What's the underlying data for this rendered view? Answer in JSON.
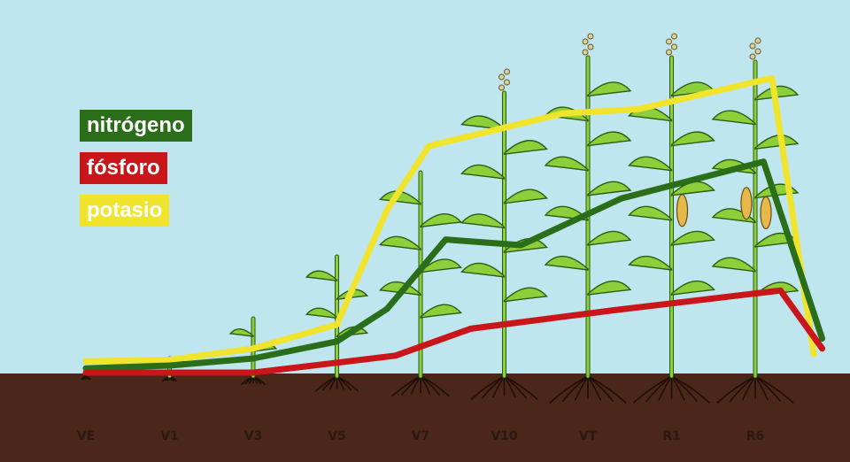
{
  "colors": {
    "sky": "#bfe6ee",
    "soil": "#4a2718",
    "plant": "#8ccf3a",
    "plant_dark": "#2f5a12",
    "nitrogen": "#2a6e1a",
    "phosphorus": "#c8161a",
    "potassium": "#f1e42d"
  },
  "chart_data": {
    "type": "line",
    "title": "",
    "xlabel": "",
    "ylabel": "",
    "grid": false,
    "legend": "top-left",
    "categories": [
      "VE",
      "V1",
      "V3",
      "V5",
      "V7",
      "V10",
      "VT",
      "R1",
      "R6"
    ],
    "series": [
      {
        "name": "nitrógeno",
        "color": "#2a6e1a",
        "points": [
          [
            0,
            3
          ],
          [
            1,
            5
          ],
          [
            2,
            10
          ],
          [
            3,
            22
          ],
          [
            3.6,
            45
          ],
          [
            4.3,
            94
          ],
          [
            5.2,
            90
          ],
          [
            6.4,
            123
          ],
          [
            8.1,
            149
          ],
          [
            8.8,
            24
          ]
        ]
      },
      {
        "name": "fósforo",
        "color": "#c8161a",
        "points": [
          [
            0,
            0
          ],
          [
            1,
            0
          ],
          [
            2,
            0
          ],
          [
            3,
            7
          ],
          [
            3.7,
            12
          ],
          [
            4.6,
            31
          ],
          [
            6.3,
            44
          ],
          [
            8.3,
            58
          ],
          [
            8.8,
            17
          ]
        ]
      },
      {
        "name": "potasio",
        "color": "#f1e42d",
        "points": [
          [
            0,
            8
          ],
          [
            1,
            9
          ],
          [
            2,
            17
          ],
          [
            3,
            34
          ],
          [
            3.6,
            115
          ],
          [
            4.1,
            160
          ],
          [
            5.7,
            183
          ],
          [
            6.6,
            186
          ],
          [
            8.2,
            208
          ],
          [
            8.7,
            13
          ]
        ]
      }
    ]
  }
}
